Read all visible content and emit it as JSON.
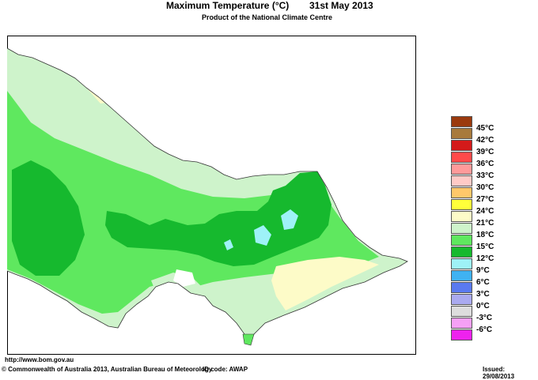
{
  "header": {
    "title": "Maximum Temperature (°C)",
    "date": "31st May 2013",
    "subtitle": "Product of the National Climate Centre"
  },
  "legend": {
    "items": [
      {
        "label": "45°C",
        "color": "#9b3a0e"
      },
      {
        "label": "42°C",
        "color": "#a87a3c"
      },
      {
        "label": "39°C",
        "color": "#d41a1a"
      },
      {
        "label": "36°C",
        "color": "#ff4a4a"
      },
      {
        "label": "33°C",
        "color": "#ff9a9a"
      },
      {
        "label": "30°C",
        "color": "#ffcac6"
      },
      {
        "label": "27°C",
        "color": "#ffc86a"
      },
      {
        "label": "24°C",
        "color": "#ffff3a"
      },
      {
        "label": "21°C",
        "color": "#fdfbc8"
      },
      {
        "label": "18°C",
        "color": "#cef3cb"
      },
      {
        "label": "15°C",
        "color": "#5fe85f"
      },
      {
        "label": "12°C",
        "color": "#16b92e"
      },
      {
        "label": "9°C",
        "color": "#9ef2f7"
      },
      {
        "label": "6°C",
        "color": "#3fb2f2"
      },
      {
        "label": "3°C",
        "color": "#5a7af0"
      },
      {
        "label": "0°C",
        "color": "#aaaaf0"
      },
      {
        "label": "-3°C",
        "color": "#dddddd"
      },
      {
        "label": "-6°C",
        "color": "#f5a0f5"
      },
      {
        "label": "",
        "color": "#ee22ee"
      },
      {
        "label": "",
        "color": "#a000a0"
      }
    ]
  },
  "map_colors": {
    "bands_21_24": "#cef3cb",
    "bands_18_21": "#5fe85f",
    "bands_15_18": "#16b92e",
    "bands_12_15": "#9ef2f7",
    "bands_24_27": "#fdfbc8"
  },
  "footer": {
    "url": "http://www.bom.gov.au",
    "copyright": "© Commonwealth of Australia 2013, Australian Bureau of Meteorology",
    "id_code": "ID code: AWAP",
    "issued": "Issued: 29/08/2013"
  }
}
